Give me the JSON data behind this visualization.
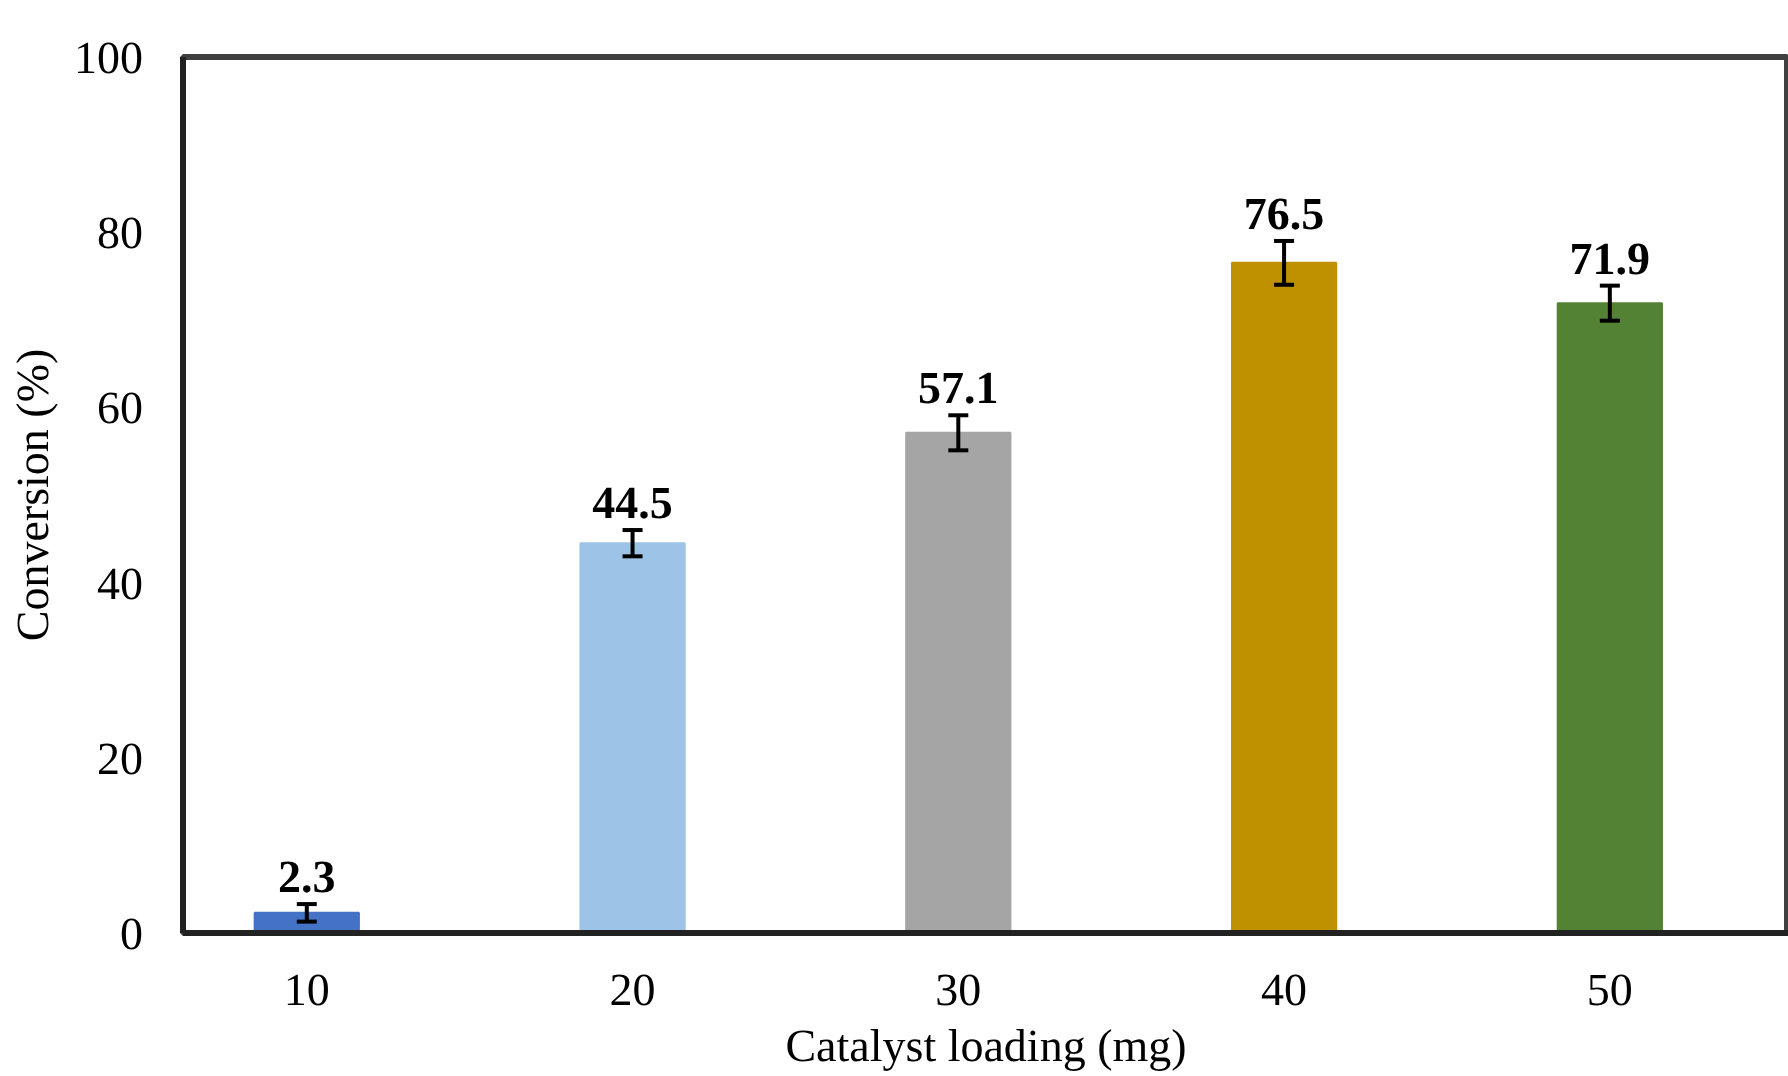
{
  "chart_data": {
    "type": "bar",
    "xlabel": "Catalyst loading (mg)",
    "ylabel": "Conversion (%)",
    "categories": [
      "10",
      "20",
      "30",
      "40",
      "50"
    ],
    "values": [
      2.3,
      44.5,
      57.1,
      76.5,
      71.9
    ],
    "colors": [
      "#4472c4",
      "#9dc3e6",
      "#a5a5a5",
      "#bf9000",
      "#548235"
    ],
    "errors": [
      1,
      1.5,
      2,
      2.5,
      2
    ],
    "data_labels": true,
    "ylim": [
      0,
      100
    ],
    "yticks": [
      0,
      20,
      40,
      60,
      80,
      100
    ],
    "grid": false
  }
}
